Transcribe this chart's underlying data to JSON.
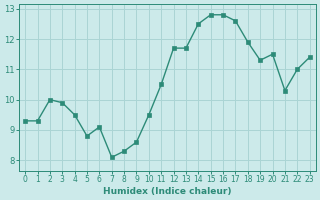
{
  "x": [
    0,
    1,
    2,
    3,
    4,
    5,
    6,
    7,
    8,
    9,
    10,
    11,
    12,
    13,
    14,
    15,
    16,
    17,
    18,
    19,
    20,
    21,
    22,
    23
  ],
  "y": [
    9.3,
    9.3,
    10.0,
    9.9,
    9.5,
    8.8,
    9.1,
    8.1,
    8.3,
    8.6,
    9.5,
    10.5,
    11.7,
    11.7,
    12.5,
    12.8,
    12.8,
    12.6,
    11.9,
    11.3,
    11.5,
    10.3,
    11.0,
    11.4
  ],
  "xlabel": "Humidex (Indice chaleur)",
  "xlim": [
    -0.5,
    23.5
  ],
  "ylim": [
    7.65,
    13.15
  ],
  "yticks": [
    8,
    9,
    10,
    11,
    12,
    13
  ],
  "xticks": [
    0,
    1,
    2,
    3,
    4,
    5,
    6,
    7,
    8,
    9,
    10,
    11,
    12,
    13,
    14,
    15,
    16,
    17,
    18,
    19,
    20,
    21,
    22,
    23
  ],
  "line_color": "#2d8b78",
  "marker_color": "#2d8b78",
  "bg_color": "#cceaea",
  "grid_color": "#aad4d4",
  "tick_label_color": "#2d8b78",
  "axis_label_color": "#2d8b78"
}
